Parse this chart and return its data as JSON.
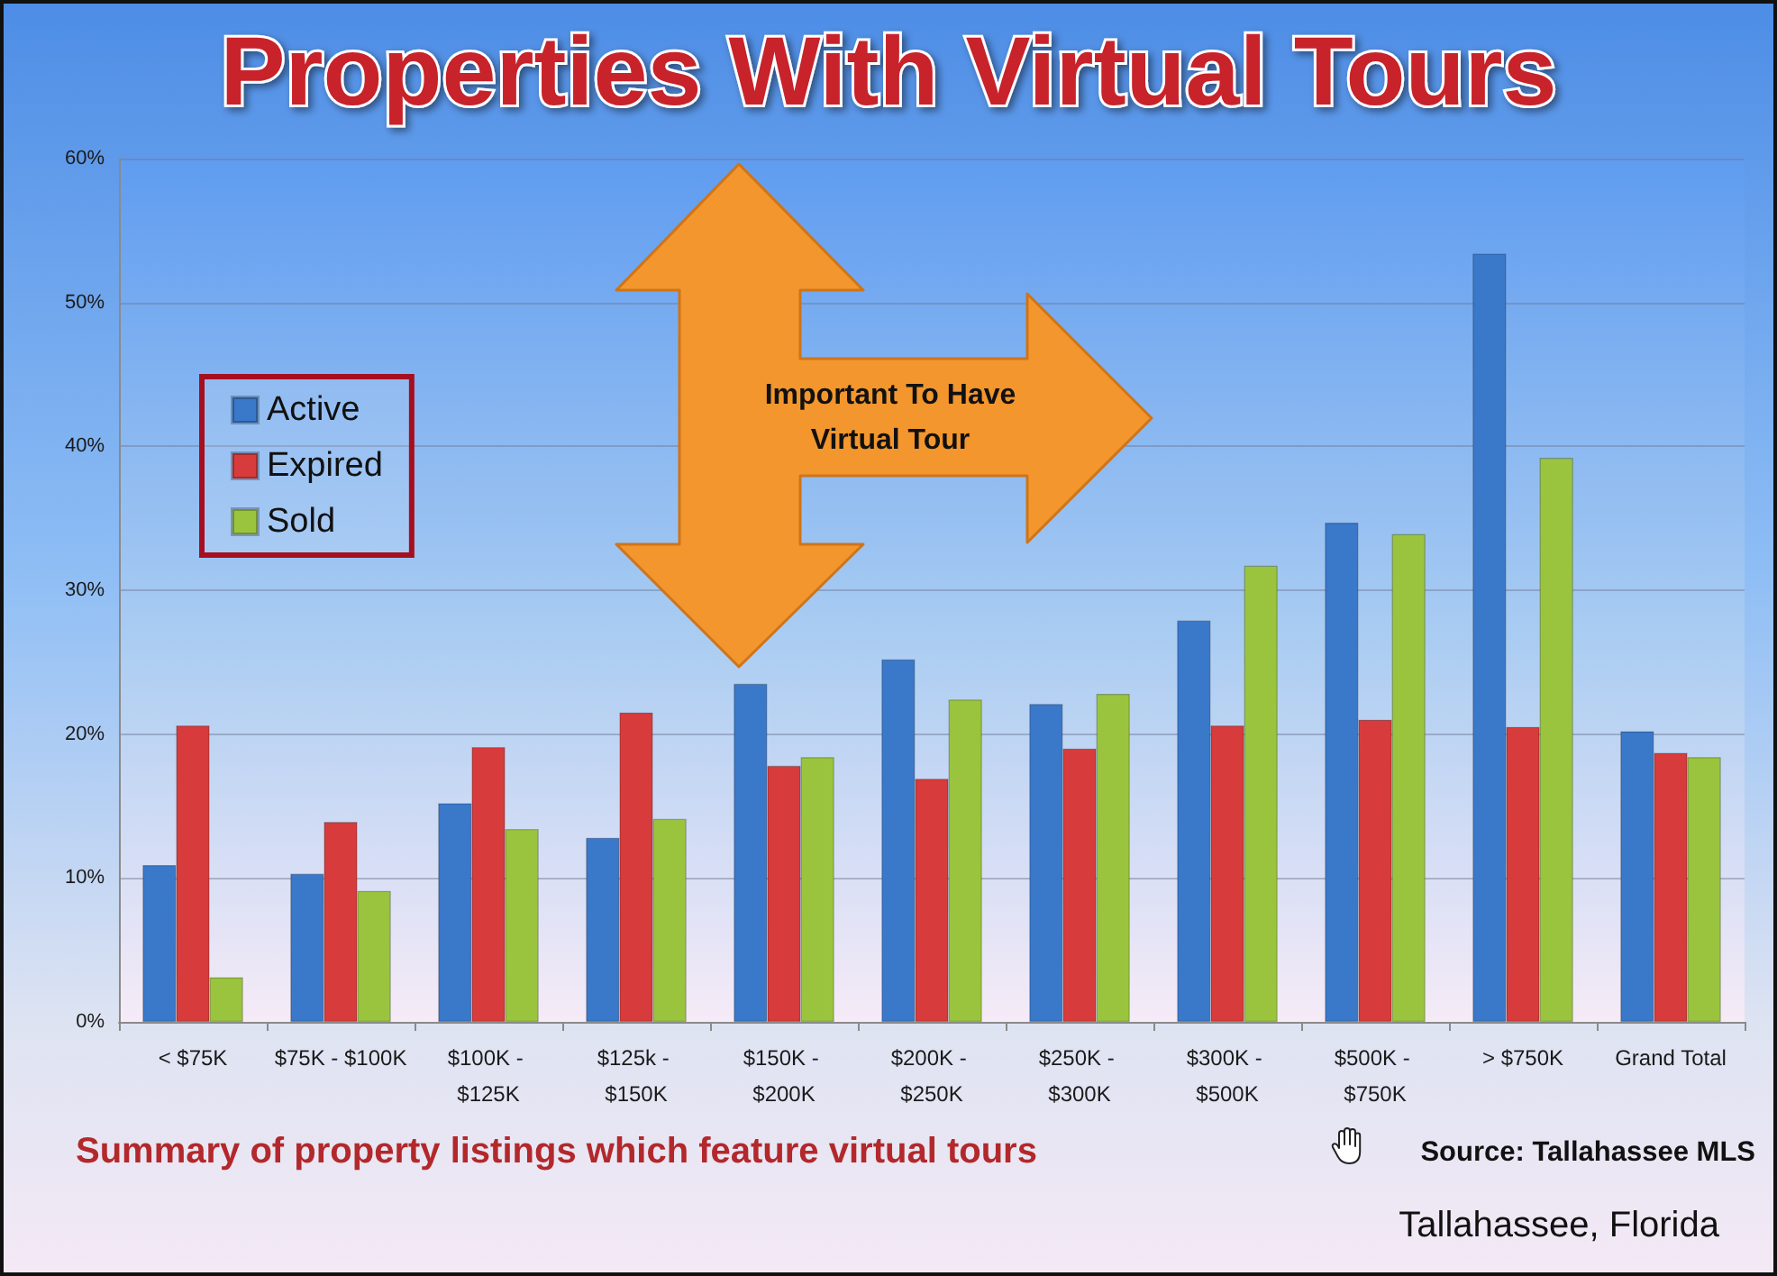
{
  "chart_data": {
    "type": "bar",
    "title": "Properties With Virtual Tours",
    "categories": [
      "< $75K",
      "$75K - $100K",
      "$100K - $125K",
      "$125k - $150K",
      "$150K - $200K",
      "$200K - $250K",
      "$250K - $300K",
      "$300K - $500K",
      "$500K - $750K",
      "> $750K",
      "Grand Total"
    ],
    "series": [
      {
        "name": "Active",
        "color": "#3a78c9",
        "values": [
          10.9,
          10.3,
          15.2,
          12.8,
          23.5,
          25.2,
          22.1,
          27.9,
          34.7,
          53.4,
          20.2
        ]
      },
      {
        "name": "Expired",
        "color": "#d83b3b",
        "values": [
          20.6,
          13.9,
          19.1,
          21.5,
          17.8,
          16.9,
          19.0,
          20.6,
          21.0,
          20.5,
          18.7
        ]
      },
      {
        "name": "Sold",
        "color": "#9ac43e",
        "values": [
          3.1,
          9.1,
          13.4,
          14.1,
          18.4,
          22.4,
          22.8,
          31.7,
          33.9,
          39.2,
          18.4
        ]
      }
    ],
    "ylim": [
      0,
      60
    ],
    "yticks": [
      {
        "value": 0,
        "label": "0%"
      },
      {
        "value": 10,
        "label": "10%"
      },
      {
        "value": 20,
        "label": "20%"
      },
      {
        "value": 30,
        "label": "30%"
      },
      {
        "value": 40,
        "label": "40%"
      },
      {
        "value": 50,
        "label": "50%"
      },
      {
        "value": 60,
        "label": "60%"
      }
    ],
    "grid": "y",
    "legend": "left",
    "annotations": [
      "Important To Have Virtual Tour",
      "Summary of property listings which feature virtual tours",
      "Source: Tallahassee MLS",
      "Tallahassee, Florida"
    ]
  }
}
